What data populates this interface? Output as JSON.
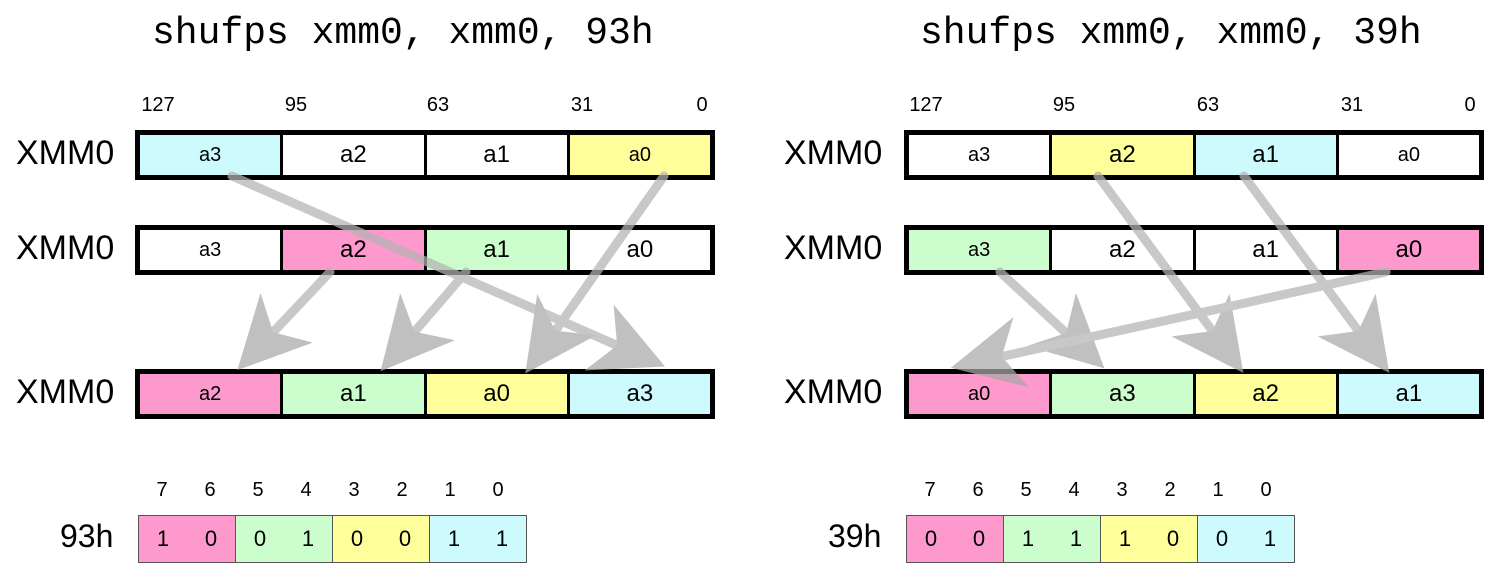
{
  "colors": {
    "cyan": "#cdfbfd",
    "pink": "#fd99cc",
    "green": "#ccfdcc",
    "yellow": "#fefe9a",
    "white": "#ffffff",
    "arrow": "#b4b4b4"
  },
  "left": {
    "title": "shufps xmm0, xmm0, 93h",
    "bit_positions": [
      "127",
      "95",
      "63",
      "31",
      "0"
    ],
    "rows": [
      {
        "label": "XMM0",
        "cells": [
          {
            "text": "a3",
            "color": "cyan"
          },
          {
            "text": "a2",
            "color": "white"
          },
          {
            "text": "a1",
            "color": "white"
          },
          {
            "text": "a0",
            "color": "yellow"
          }
        ]
      },
      {
        "label": "XMM0",
        "cells": [
          {
            "text": "a3",
            "color": "white"
          },
          {
            "text": "a2",
            "color": "pink"
          },
          {
            "text": "a1",
            "color": "green"
          },
          {
            "text": "a0",
            "color": "white"
          }
        ]
      },
      {
        "label": "XMM0",
        "cells": [
          {
            "text": "a2",
            "color": "pink"
          },
          {
            "text": "a1",
            "color": "green"
          },
          {
            "text": "a0",
            "color": "yellow"
          },
          {
            "text": "a3",
            "color": "cyan"
          }
        ]
      }
    ],
    "imm": {
      "label": "93h",
      "indices": [
        "7",
        "6",
        "5",
        "4",
        "3",
        "2",
        "1",
        "0"
      ],
      "bits": [
        "1",
        "0",
        "0",
        "1",
        "0",
        "0",
        "1",
        "1"
      ],
      "colors": [
        "pink",
        "green",
        "yellow",
        "cyan"
      ]
    }
  },
  "right": {
    "title": "shufps xmm0, xmm0, 39h",
    "bit_positions": [
      "127",
      "95",
      "63",
      "31",
      "0"
    ],
    "rows": [
      {
        "label": "XMM0",
        "cells": [
          {
            "text": "a3",
            "color": "white"
          },
          {
            "text": "a2",
            "color": "yellow"
          },
          {
            "text": "a1",
            "color": "cyan"
          },
          {
            "text": "a0",
            "color": "white"
          }
        ]
      },
      {
        "label": "XMM0",
        "cells": [
          {
            "text": "a3",
            "color": "green"
          },
          {
            "text": "a2",
            "color": "white"
          },
          {
            "text": "a1",
            "color": "white"
          },
          {
            "text": "a0",
            "color": "pink"
          }
        ]
      },
      {
        "label": "XMM0",
        "cells": [
          {
            "text": "a0",
            "color": "pink"
          },
          {
            "text": "a3",
            "color": "green"
          },
          {
            "text": "a2",
            "color": "yellow"
          },
          {
            "text": "a1",
            "color": "cyan"
          }
        ]
      }
    ],
    "imm": {
      "label": "39h",
      "indices": [
        "7",
        "6",
        "5",
        "4",
        "3",
        "2",
        "1",
        "0"
      ],
      "bits": [
        "0",
        "0",
        "1",
        "1",
        "1",
        "0",
        "0",
        "1"
      ],
      "colors": [
        "pink",
        "green",
        "yellow",
        "cyan"
      ]
    }
  }
}
